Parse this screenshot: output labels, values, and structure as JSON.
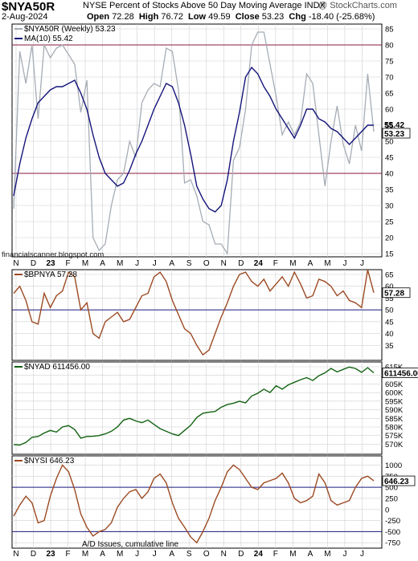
{
  "header": {
    "symbol": "$NYA50R",
    "description": "NYSE Percent of Stocks Above 50 Day Moving Average",
    "index_tag": "INDX",
    "brand": "@ StockCharts.com",
    "date": "2-Aug-2024",
    "open_label": "Open",
    "open": "72.28",
    "high_label": "High",
    "high": "76.72",
    "low_label": "Low",
    "low": "49.59",
    "close_label": "Close",
    "close": "53.23",
    "chg_label": "Chg",
    "chg": "-18.40 (-25.68%)"
  },
  "watermark": "financialscanner.blogspot.com",
  "annotation": "A/D Issues, cumulative line",
  "x_axis_labels": [
    "N",
    "D",
    "23",
    "F",
    "M",
    "A",
    "M",
    "J",
    "J",
    "A",
    "S",
    "O",
    "N",
    "D",
    "24",
    "F",
    "M",
    "A",
    "M",
    "J",
    "J"
  ],
  "colors": {
    "gray": "#a6adb5",
    "navy": "#14147a",
    "brown": "#9c4a22",
    "green": "#136313",
    "refline": "#8a1a3a",
    "navyline": "#1a1a80",
    "grid": "#d0d0d0"
  },
  "chart_data": [
    {
      "type": "line",
      "title": "$NYA50R (Weekly) 53.23",
      "ylim": [
        15,
        85
      ],
      "yticks": [
        15,
        20,
        25,
        30,
        35,
        40,
        45,
        50,
        55,
        60,
        65,
        70,
        75,
        80,
        85
      ],
      "reference_lines": [
        40,
        80
      ],
      "series": [
        {
          "name": "$NYA50R (Weekly) 53.23",
          "last_label": "53.23",
          "values": [
            29,
            78,
            68,
            80,
            57,
            80,
            76,
            79,
            80,
            77,
            74,
            59,
            69,
            20,
            16,
            18,
            30,
            38,
            40,
            50,
            45,
            62,
            66,
            68,
            67,
            79,
            78,
            66,
            37,
            38,
            33,
            25,
            24,
            18,
            18,
            15,
            44,
            48,
            60,
            80,
            84,
            84,
            74,
            64,
            52,
            56,
            52,
            56,
            71,
            68,
            52,
            36,
            50,
            61,
            49,
            43,
            55,
            47,
            71,
            53
          ]
        },
        {
          "name": "MA(10) 55.42",
          "last_label": "55.42",
          "values": [
            33,
            43,
            51,
            57,
            62,
            64,
            66,
            67,
            67,
            68,
            69,
            65,
            60,
            52,
            45,
            40,
            38,
            36,
            37,
            41,
            46,
            50,
            55,
            60,
            64,
            68,
            67,
            62,
            55,
            46,
            36,
            32,
            29,
            28,
            30,
            38,
            50,
            59,
            70,
            73,
            71,
            67,
            64,
            60,
            57,
            54,
            51,
            55,
            60,
            60,
            57,
            56,
            54,
            53,
            51,
            49,
            51,
            53,
            55,
            55
          ]
        }
      ]
    },
    {
      "type": "line",
      "title": "$BPNYA 57.28",
      "ylim": [
        30,
        65
      ],
      "yticks": [
        35,
        40,
        45,
        50,
        55,
        60,
        65
      ],
      "reference_lines": [
        50
      ],
      "series": [
        {
          "name": "$BPNYA 57.28",
          "last_label": "57.28",
          "values": [
            57,
            60,
            54,
            45,
            44,
            57,
            51,
            56,
            58,
            66,
            64,
            50,
            53,
            40,
            38,
            45,
            47,
            49,
            45,
            46,
            51,
            56,
            57,
            64,
            66,
            62,
            54,
            48,
            42,
            40,
            35,
            31,
            33,
            40,
            47,
            53,
            60,
            65,
            66,
            62,
            60,
            63,
            58,
            61,
            64,
            60,
            66,
            61,
            55,
            56,
            63,
            62,
            60,
            56,
            58,
            54,
            53,
            51,
            67,
            57.28
          ]
        }
      ]
    },
    {
      "type": "line",
      "title": "$NYAD 611456.00",
      "ylim": [
        566000,
        615000
      ],
      "yticks": [
        570000,
        575000,
        580000,
        585000,
        590000,
        595000,
        600000,
        605000,
        610000,
        615000
      ],
      "ytick_labels": [
        "570K",
        "575K",
        "580K",
        "585K",
        "590K",
        "595K",
        "600K",
        "605K",
        "610K",
        "615K"
      ],
      "series": [
        {
          "name": "$NYAD 611456.00",
          "last_label": "611456.00",
          "values": [
            569800,
            569500,
            571000,
            574000,
            574500,
            576500,
            578000,
            577000,
            580000,
            580800,
            578500,
            573500,
            574500,
            574600,
            575000,
            576000,
            577500,
            580000,
            584000,
            585000,
            583500,
            582500,
            584000,
            581500,
            579000,
            577500,
            576000,
            575000,
            578000,
            581000,
            585500,
            588000,
            588600,
            589000,
            591500,
            593000,
            593800,
            595000,
            594000,
            598000,
            599600,
            602000,
            600000,
            604000,
            602000,
            604500,
            606000,
            607500,
            608700,
            607000,
            609800,
            611500,
            614000,
            612000,
            613500,
            614800,
            614000,
            611800,
            614500,
            611456
          ]
        }
      ]
    },
    {
      "type": "line",
      "title": "$NYSI 646.23",
      "ylim": [
        -800,
        1100
      ],
      "yticks": [
        -750,
        -500,
        -250,
        0,
        250,
        500,
        750,
        1000
      ],
      "reference_lines": [
        -500,
        500
      ],
      "series": [
        {
          "name": "$NYSI 646.23",
          "last_label": "646.23",
          "values": [
            -150,
            100,
            300,
            150,
            -300,
            -250,
            300,
            700,
            1000,
            850,
            450,
            -100,
            -400,
            -600,
            -500,
            -450,
            -300,
            50,
            250,
            400,
            450,
            250,
            400,
            700,
            800,
            600,
            150,
            -200,
            -400,
            -620,
            -750,
            -500,
            -200,
            200,
            500,
            850,
            1000,
            900,
            700,
            500,
            450,
            600,
            650,
            700,
            820,
            600,
            250,
            150,
            200,
            300,
            800,
            600,
            200,
            100,
            150,
            200,
            500,
            700,
            750,
            646
          ]
        }
      ]
    }
  ]
}
